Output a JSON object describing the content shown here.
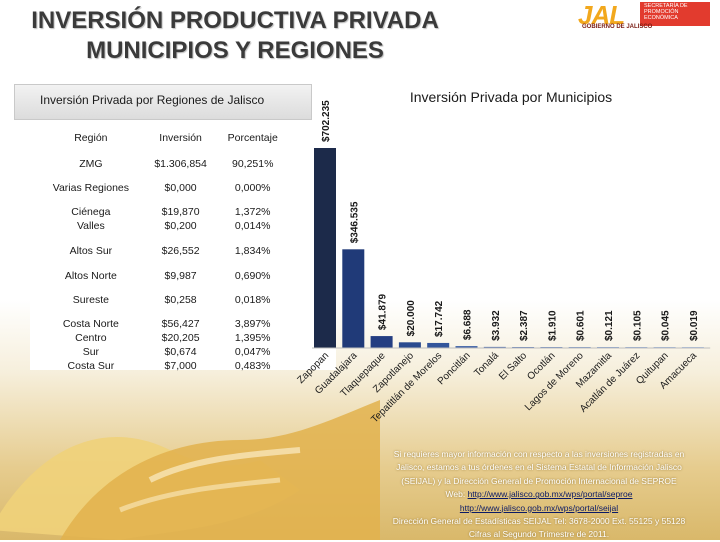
{
  "header": {
    "title_line1": "INVERSIÓN PRODUCTIVA PRIVADA",
    "title_line2": "MUNICIPIOS Y REGIONES"
  },
  "logo": {
    "word": "JAL",
    "secretaria": "SECRETARÍA DE PROMOCIÓN ECONÓMICA",
    "gobierno": "GOBIERNO DE JALISCO"
  },
  "regions_table": {
    "title": "Inversión Privada por Regiones de Jalisco",
    "headers": [
      "Región",
      "Inversión",
      "Porcentaje"
    ],
    "rows": [
      {
        "region": [
          "ZMG"
        ],
        "inversion": [
          "$1.306,854"
        ],
        "porcentaje": [
          "90,251%"
        ]
      },
      {
        "region": [
          "Varias Regiones"
        ],
        "inversion": [
          "$0,000"
        ],
        "porcentaje": [
          "0,000%"
        ]
      },
      {
        "region": [
          "Ciénega",
          "Valles"
        ],
        "inversion": [
          "$19,870",
          "$0,200"
        ],
        "porcentaje": [
          "1,372%",
          "0,014%"
        ]
      },
      {
        "region": [
          "Altos Sur"
        ],
        "inversion": [
          "$26,552"
        ],
        "porcentaje": [
          "1,834%"
        ]
      },
      {
        "region": [
          "Altos Norte"
        ],
        "inversion": [
          "$9,987"
        ],
        "porcentaje": [
          "0,690%"
        ]
      },
      {
        "region": [
          "Sureste"
        ],
        "inversion": [
          "$0,258"
        ],
        "porcentaje": [
          "0,018%"
        ]
      },
      {
        "region": [
          "Costa Norte",
          "Centro",
          "Sur",
          "Costa Sur"
        ],
        "inversion": [
          "$56,427",
          "$20,205",
          "$0,674",
          "$7,000"
        ],
        "porcentaje": [
          "3,897%",
          "1,395%",
          "0,047%",
          "0,483%"
        ]
      }
    ]
  },
  "chart_data": {
    "type": "bar",
    "title": "Inversión Privada por Municipios",
    "categories": [
      "Zapopan",
      "Guadalajara",
      "Tlaquepaque",
      "Zapotlanejo",
      "Tepatitlán de Morelos",
      "Poncitlán",
      "Tonalá",
      "El Salto",
      "Ocotlán",
      "Lagos de Moreno",
      "Mazamitla",
      "Acatlán de Juárez",
      "Quitupan",
      "Amacueca"
    ],
    "values": [
      702.235,
      346.535,
      41.879,
      20.0,
      17.742,
      6.688,
      3.932,
      2.387,
      1.91,
      0.601,
      0.121,
      0.105,
      0.045,
      0.019
    ],
    "value_labels": [
      "$702.235",
      "$346.535",
      "$41.879",
      "$20.000",
      "$17.742",
      "$6.688",
      "$3.932",
      "$2.387",
      "$1.910",
      "$0.601",
      "$0.121",
      "$0.105",
      "$0.045",
      "$0.019"
    ],
    "ylim": [
      0,
      702.235
    ],
    "xlabel": "",
    "ylabel": "",
    "colors": [
      "#1c2a4a",
      "#203a78",
      "#243e82",
      "#2a4a8f",
      "#33559b",
      "#3d60a6",
      "#4a6cb0",
      "#5678b8",
      "#6384c0",
      "#7090c8",
      "#7d9bcf",
      "#8aa6d5",
      "#97b1db",
      "#a4bce1"
    ],
    "data_label_color": "#1a1a1a"
  },
  "footer_info": {
    "line1": "Si requieres mayor información con respecto a las inversiones registradas en",
    "line2": "Jalisco, estamos a tus órdenes en el Sistema Estatal de Información Jalisco",
    "line3": "(SEIJAL) y la Dirección General de Promoción Internacional de SEPROE",
    "line4_prefix": "Web:",
    "link1": "http://www.jalisco.gob.mx/wps/portal/seproe",
    "link2": "http://www.jalisco.gob.mx/wps/portal/seijal",
    "line6": "Dirección General de Estadísticas SEIJAL Tel: 3678-2000 Ext. 55125 y 55128",
    "line7": "Cifras al Segundo Trimestre de 2011."
  }
}
